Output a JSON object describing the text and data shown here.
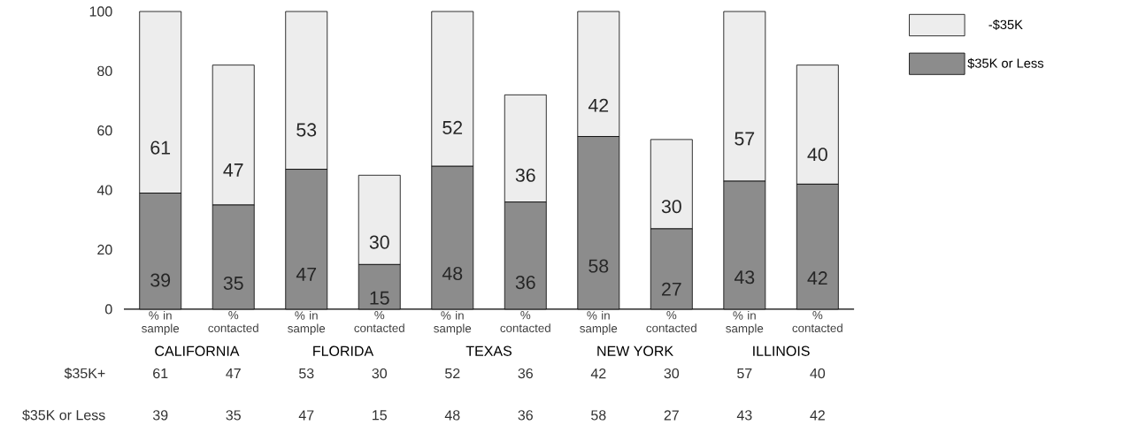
{
  "chart_data": {
    "type": "bar",
    "stacked": true,
    "categories": [
      "% in sample",
      "% contacted",
      "% in sample",
      "% contacted",
      "% in sample",
      "% contacted",
      "% in sample",
      "% contacted",
      "% in sample",
      "% contacted"
    ],
    "series": [
      {
        "name": "$35K or Less",
        "color": "#8c8c8c",
        "values": [
          39,
          35,
          47,
          15,
          48,
          36,
          58,
          27,
          43,
          42
        ],
        "value_labels": [
          "39",
          "35",
          "47",
          "15",
          "48",
          "36",
          "58",
          "27",
          "43",
          "42"
        ]
      },
      {
        "name": "-$35K",
        "color": "#ededed",
        "values": [
          61,
          47,
          53,
          30,
          52,
          36,
          42,
          30,
          57,
          40
        ],
        "value_labels": [
          "61",
          "47",
          "53",
          "30",
          "52",
          "36",
          "42",
          "30",
          "57",
          "40"
        ]
      }
    ],
    "ylim": [
      0,
      100
    ],
    "yticks": [
      0,
      20,
      40,
      60,
      80,
      100
    ],
    "annotations": [
      "CALIFORNIA",
      "FLORIDA",
      "TEXAS",
      "NEW YORK",
      "ILLINOIS",
      "$35K+",
      "$35K or Less",
      "61",
      "47",
      "53",
      "30",
      "52",
      "36",
      "42",
      "30",
      "57",
      "40",
      "39",
      "35",
      "47",
      "15",
      "48",
      "36",
      "58",
      "27",
      "43",
      "42"
    ],
    "legend": "top right",
    "grid": false
  }
}
